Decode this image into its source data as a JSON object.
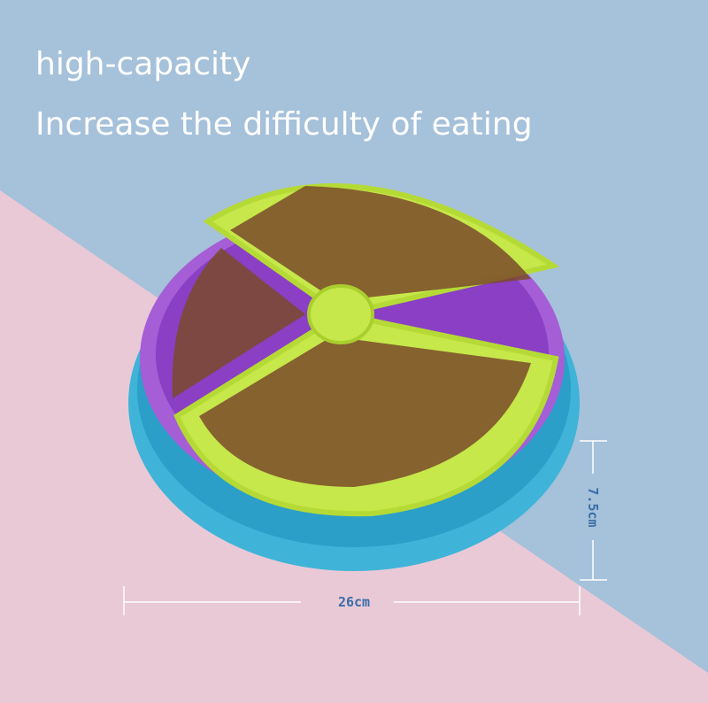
{
  "header": {
    "title": "high-capacity",
    "subtitle": "Increase the difficulty of eating"
  },
  "dimensions": {
    "width": "26cm",
    "height": "7.5cm"
  }
}
